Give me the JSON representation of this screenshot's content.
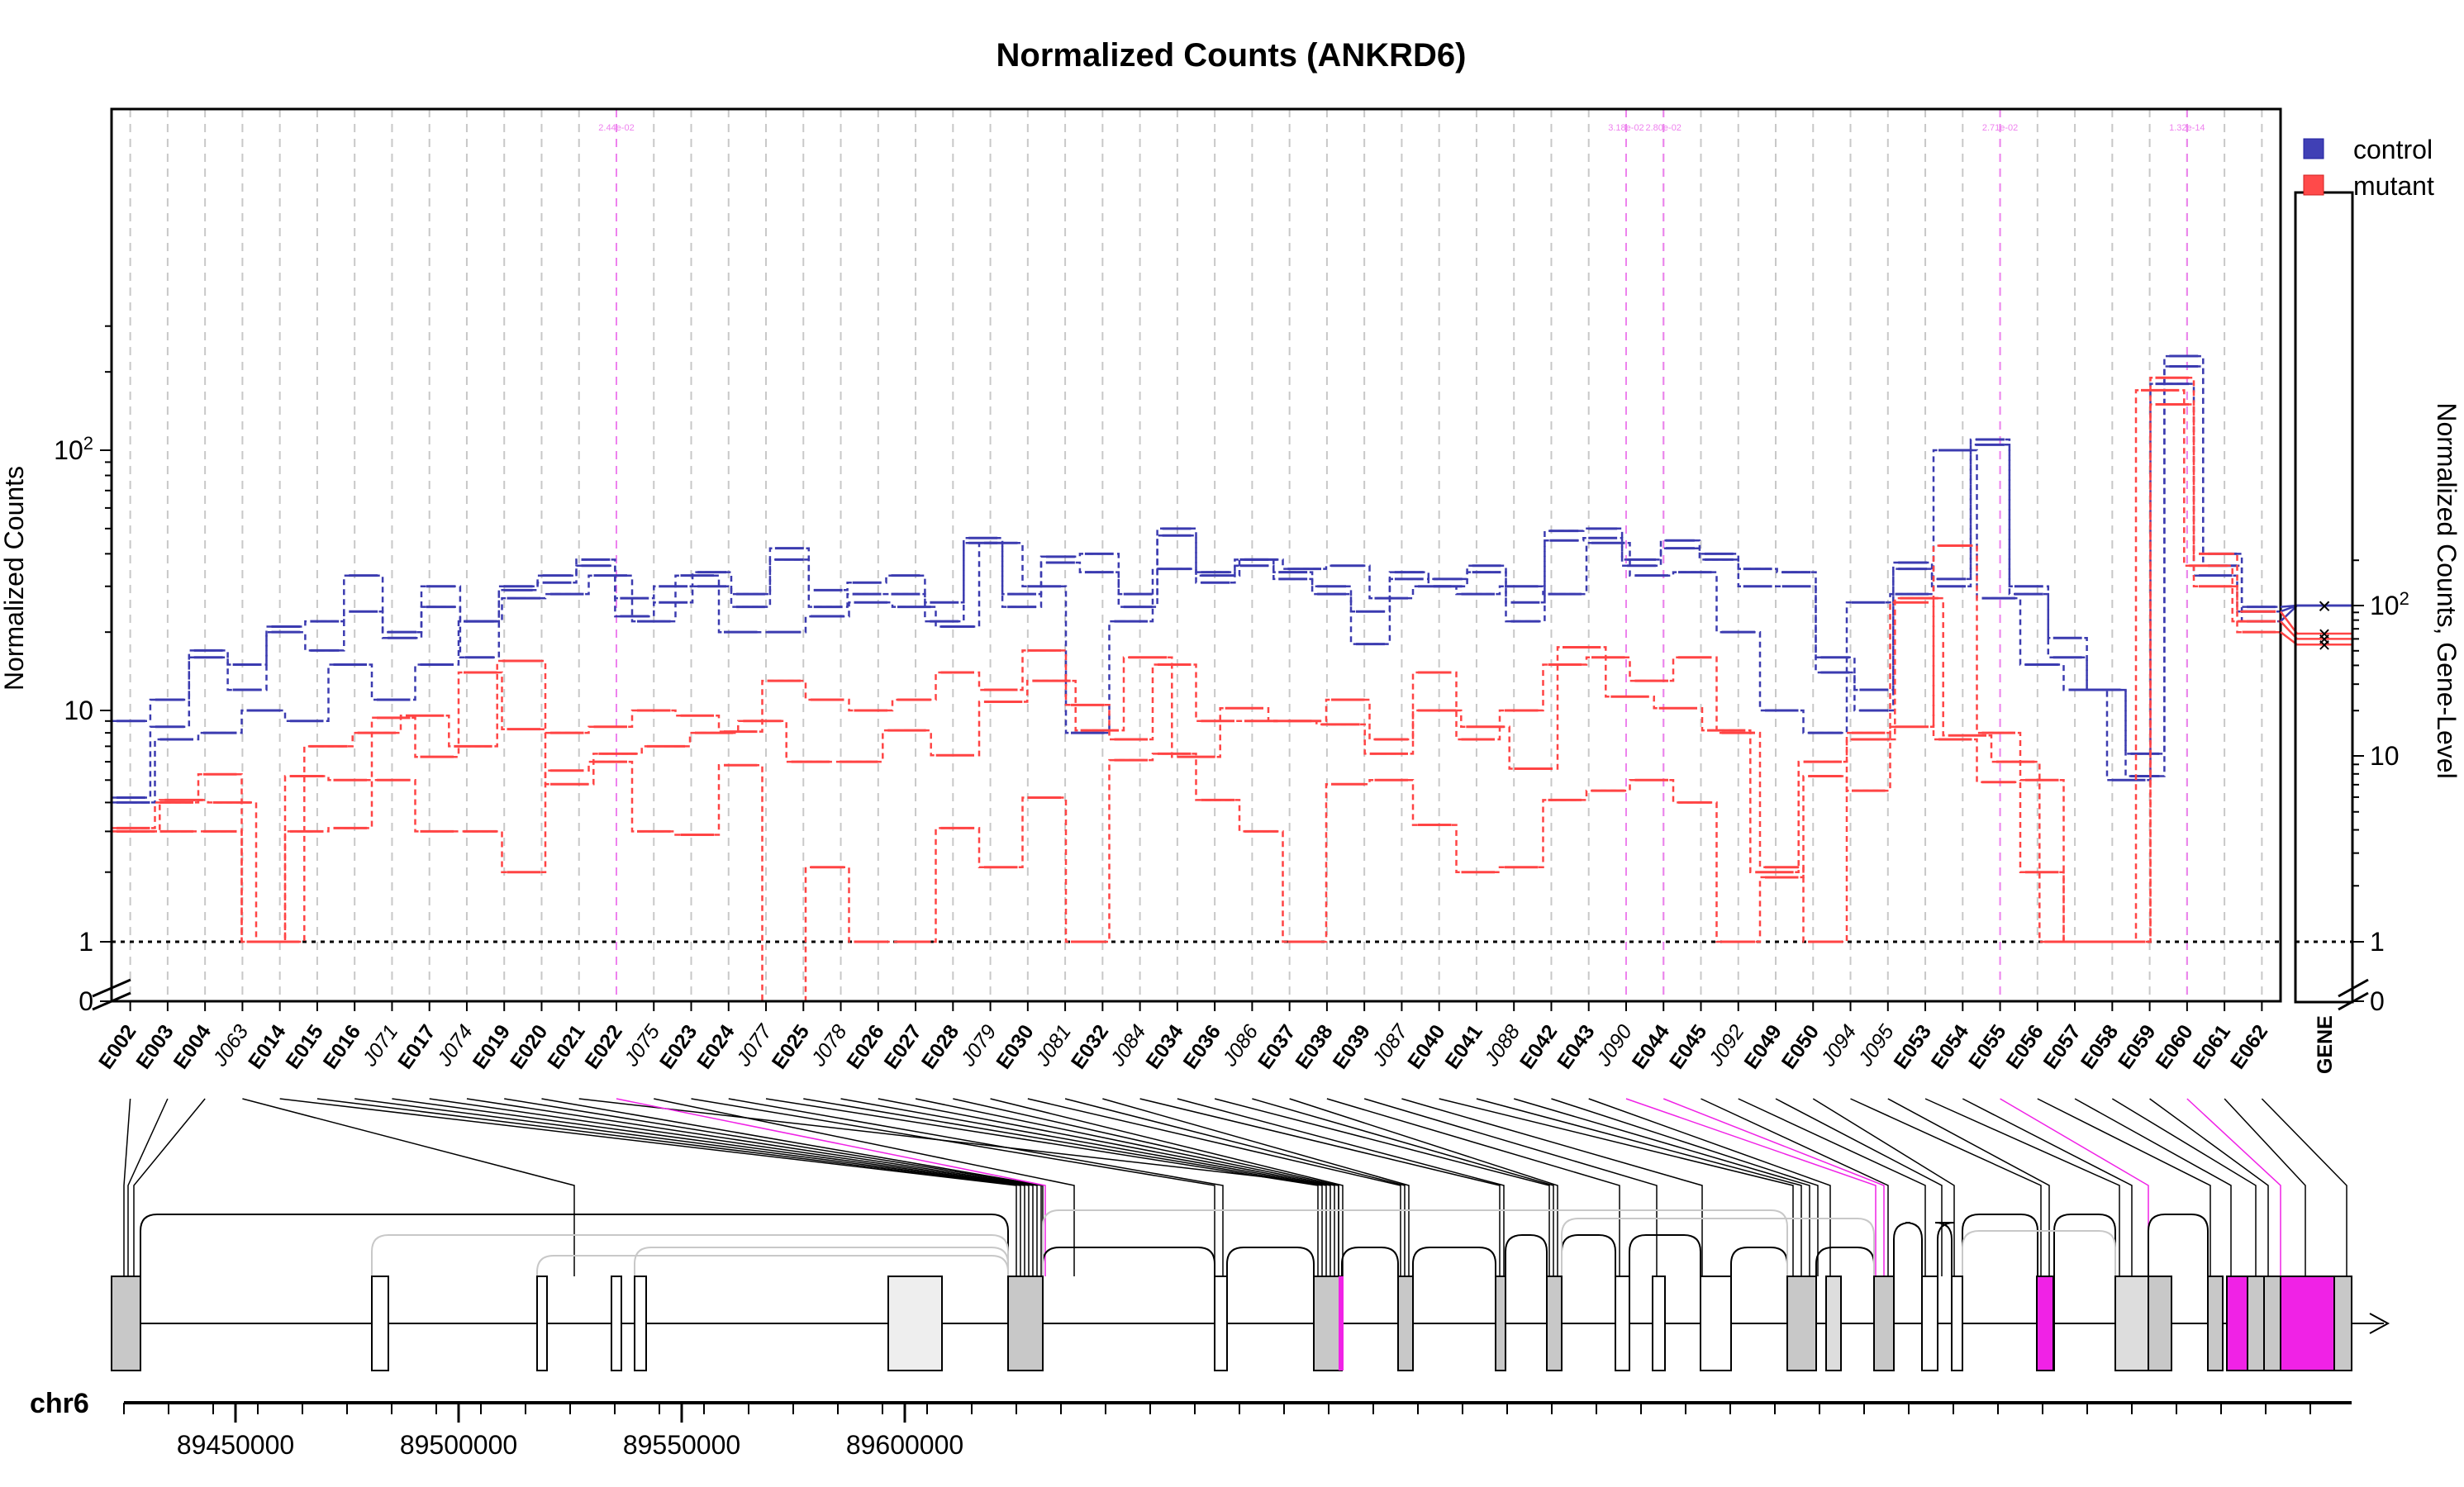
{
  "chart_data": {
    "type": "line",
    "title": "Normalized Counts (ANKRD6)",
    "ylabel": "Normalized Counts",
    "ylabel_right": "Normalized Counts, Gene-Level",
    "y_scale": "log",
    "ylim": [
      0,
      300
    ],
    "yticks": [
      "0",
      "1",
      "10",
      "10^2"
    ],
    "right_yticks": [
      "0",
      "1",
      "10",
      "10^2"
    ],
    "reference_line": 1,
    "grid": "vertical dashed",
    "legend_position": "top-right",
    "chromosome": "chr6",
    "genomic_ticks": [
      "89450000",
      "89500000",
      "89550000",
      "89600000"
    ],
    "significance_labels": [
      "2.44e-02",
      "3.18e-02",
      "2.80e-02",
      "2.71e-02",
      "1.32e-14"
    ],
    "features": [
      {
        "id": "E002",
        "kind": "exon"
      },
      {
        "id": "E003",
        "kind": "exon"
      },
      {
        "id": "E004",
        "kind": "exon"
      },
      {
        "id": "J063",
        "kind": "junction"
      },
      {
        "id": "E014",
        "kind": "exon"
      },
      {
        "id": "E015",
        "kind": "exon"
      },
      {
        "id": "E016",
        "kind": "exon"
      },
      {
        "id": "J071",
        "kind": "junction"
      },
      {
        "id": "E017",
        "kind": "exon"
      },
      {
        "id": "J074",
        "kind": "junction"
      },
      {
        "id": "E019",
        "kind": "exon"
      },
      {
        "id": "E020",
        "kind": "exon"
      },
      {
        "id": "E021",
        "kind": "exon"
      },
      {
        "id": "E022",
        "kind": "exon",
        "significant": true
      },
      {
        "id": "J075",
        "kind": "junction"
      },
      {
        "id": "E023",
        "kind": "exon"
      },
      {
        "id": "E024",
        "kind": "exon"
      },
      {
        "id": "J077",
        "kind": "junction"
      },
      {
        "id": "E025",
        "kind": "exon"
      },
      {
        "id": "J078",
        "kind": "junction"
      },
      {
        "id": "E026",
        "kind": "exon"
      },
      {
        "id": "E027",
        "kind": "exon"
      },
      {
        "id": "E028",
        "kind": "exon"
      },
      {
        "id": "J079",
        "kind": "junction"
      },
      {
        "id": "E030",
        "kind": "exon"
      },
      {
        "id": "J081",
        "kind": "junction"
      },
      {
        "id": "E032",
        "kind": "exon"
      },
      {
        "id": "J084",
        "kind": "junction"
      },
      {
        "id": "E034",
        "kind": "exon"
      },
      {
        "id": "E036",
        "kind": "exon"
      },
      {
        "id": "J086",
        "kind": "junction"
      },
      {
        "id": "E037",
        "kind": "exon"
      },
      {
        "id": "E038",
        "kind": "exon"
      },
      {
        "id": "E039",
        "kind": "exon"
      },
      {
        "id": "J087",
        "kind": "junction"
      },
      {
        "id": "E040",
        "kind": "exon"
      },
      {
        "id": "E041",
        "kind": "exon"
      },
      {
        "id": "J088",
        "kind": "junction"
      },
      {
        "id": "E042",
        "kind": "exon"
      },
      {
        "id": "E043",
        "kind": "exon"
      },
      {
        "id": "J090",
        "kind": "junction",
        "significant": true
      },
      {
        "id": "E044",
        "kind": "exon",
        "significant": true
      },
      {
        "id": "E045",
        "kind": "exon"
      },
      {
        "id": "J092",
        "kind": "junction"
      },
      {
        "id": "E049",
        "kind": "exon"
      },
      {
        "id": "E050",
        "kind": "exon"
      },
      {
        "id": "J094",
        "kind": "junction"
      },
      {
        "id": "J095",
        "kind": "junction"
      },
      {
        "id": "E053",
        "kind": "exon"
      },
      {
        "id": "E054",
        "kind": "exon"
      },
      {
        "id": "E055",
        "kind": "exon",
        "significant": true
      },
      {
        "id": "E056",
        "kind": "exon"
      },
      {
        "id": "E057",
        "kind": "exon"
      },
      {
        "id": "E058",
        "kind": "exon"
      },
      {
        "id": "E059",
        "kind": "exon"
      },
      {
        "id": "E060",
        "kind": "exon",
        "significant": true
      },
      {
        "id": "E061",
        "kind": "exon"
      },
      {
        "id": "E062",
        "kind": "exon"
      }
    ],
    "gene_level_label": "GENE",
    "series": [
      {
        "name": "control",
        "color": "#3b3bb0",
        "replicates": [
          [
            9,
            11,
            17,
            15,
            21,
            22,
            33,
            20,
            30,
            22,
            30,
            33,
            38,
            27,
            30,
            34,
            28,
            42,
            29,
            31,
            33,
            26,
            46,
            28,
            39,
            40,
            28,
            50,
            34,
            38,
            34,
            30,
            24,
            34,
            32,
            36,
            26,
            49,
            50,
            38,
            45,
            40,
            35,
            34,
            16,
            12,
            37,
            32,
            110,
            30,
            19,
            12,
            6.5,
            230,
            40,
            25
          ],
          [
            4.2,
            8.5,
            16,
            12,
            20,
            17,
            24,
            19,
            25,
            16,
            29,
            31,
            36,
            23,
            26,
            30,
            25,
            38,
            25,
            28,
            28,
            22,
            44,
            25,
            37,
            34,
            25,
            47,
            31,
            36,
            32,
            28,
            18,
            32,
            30,
            34,
            22,
            45,
            46,
            36,
            42,
            38,
            30,
            30,
            14,
            10,
            35,
            30,
            105,
            28,
            16,
            12,
            5.2,
            210,
            36,
            22
          ],
          [
            4,
            7.5,
            8,
            10,
            9,
            15,
            11,
            15,
            22,
            27,
            28,
            33,
            22,
            33,
            20,
            20,
            23,
            26,
            25,
            21,
            44,
            30,
            8,
            22,
            35,
            33,
            38,
            35,
            36,
            27,
            30,
            28,
            30,
            28,
            44,
            33,
            34,
            20,
            10,
            8,
            26,
            28,
            100,
            27,
            15,
            12,
            5,
            180,
            33,
            24
          ]
        ]
      },
      {
        "name": "mutant",
        "color": "#ff4444",
        "replicates": [
          [
            3.1,
            4,
            5.3,
            1,
            5.2,
            5,
            9.3,
            6.3,
            14,
            8.3,
            8,
            8.5,
            10,
            9.5,
            8.1,
            13,
            11,
            10,
            11,
            14,
            12,
            17,
            10.5,
            7.5,
            15,
            9,
            9,
            9,
            11,
            7.5,
            14,
            7.5,
            10,
            15,
            16,
            13,
            16,
            8,
            2.1,
            1,
            8,
            8.5,
            43,
            8,
            5,
            1,
            1,
            190,
            40,
            24
          ],
          [
            3,
            4.1,
            4,
            1,
            7,
            8,
            9.5,
            7,
            15.5,
            4.8,
            6.5,
            7,
            8,
            9,
            6,
            6,
            8.2,
            6.4,
            10.8,
            13,
            8.2,
            16,
            6.3,
            10.2,
            9,
            8.7,
            6.5,
            10,
            8.5,
            5.6,
            17.5,
            11.3,
            10.2,
            8.2,
            2,
            6,
            7.5,
            27,
            7.8,
            6,
            1,
            1,
            170,
            36,
            22
          ],
          [
            3,
            3,
            3,
            1,
            3,
            3.1,
            5,
            3,
            3,
            2,
            5.5,
            6,
            3,
            2.9,
            5.8,
            0,
            2.1,
            1,
            1,
            3.1,
            2.1,
            4.2,
            1,
            6.1,
            6.5,
            4.1,
            3,
            1,
            4.8,
            5,
            3.2,
            2,
            2.1,
            4.1,
            4.5,
            5,
            4,
            1,
            1.9,
            5.2,
            4.5,
            26,
            7.5,
            4.9,
            2,
            1,
            1,
            150,
            30,
            20
          ]
        ]
      }
    ],
    "gene_level": {
      "control": 100,
      "mutant": [
        65,
        60,
        55
      ]
    }
  }
}
